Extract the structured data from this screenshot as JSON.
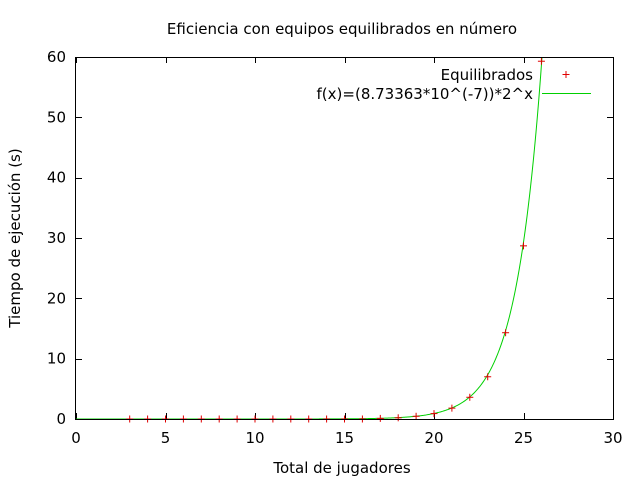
{
  "chart_data": {
    "type": "scatter",
    "title": "Eficiencia con equipos equilibrados en número",
    "xlabel": "Total de jugadores",
    "ylabel": "Tiempo de ejecución (s)",
    "xlim": [
      0,
      30
    ],
    "ylim": [
      0,
      60
    ],
    "xticks": [
      0,
      5,
      10,
      15,
      20,
      25,
      30
    ],
    "yticks": [
      0,
      10,
      20,
      30,
      40,
      50,
      60
    ],
    "grid": false,
    "legend_position": "top-right",
    "series": [
      {
        "name": "Equilibrados",
        "kind": "points",
        "marker": "plus",
        "color": "#e00000",
        "x": [
          3,
          4,
          5,
          6,
          7,
          8,
          9,
          10,
          11,
          12,
          13,
          14,
          15,
          16,
          17,
          18,
          19,
          20,
          21,
          22,
          23,
          24,
          25,
          26
        ],
        "y": [
          0,
          0,
          0,
          0,
          0,
          0,
          0,
          0,
          0,
          0,
          0,
          0,
          0,
          0,
          0.1,
          0.2,
          0.45,
          0.9,
          1.8,
          3.6,
          7.0,
          14.3,
          28.7,
          59.3
        ]
      },
      {
        "name": "f(x)=(8.73363*10^(-7))*2^x",
        "kind": "function",
        "coefficient": 8.73363e-07,
        "base": 2,
        "color": "#00d000"
      }
    ]
  }
}
